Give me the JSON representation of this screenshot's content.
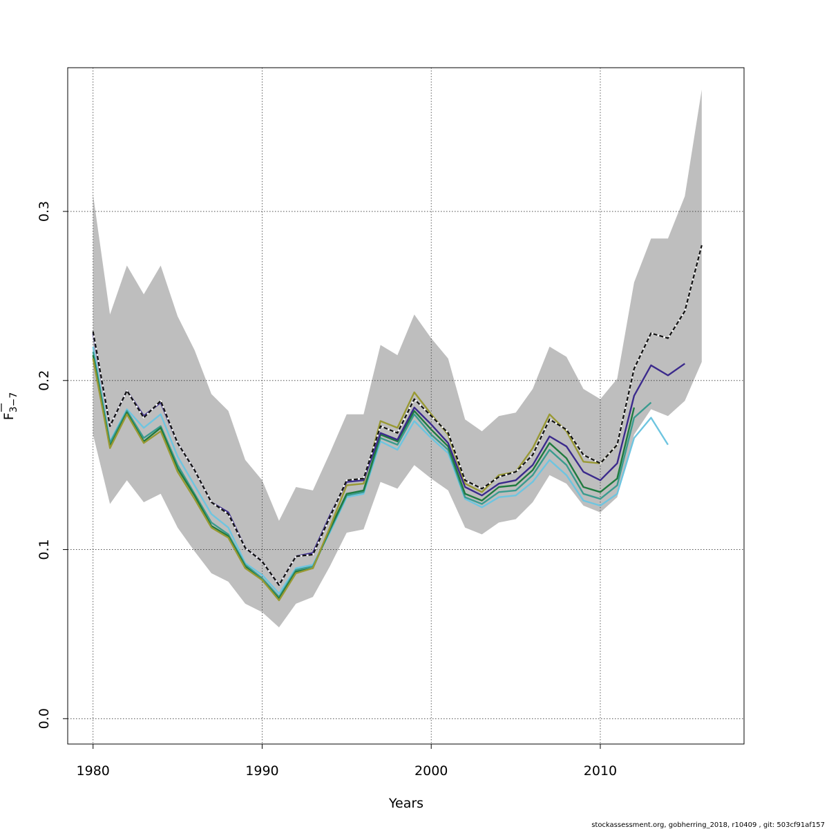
{
  "chart_data": {
    "type": "line",
    "xlabel": "Years",
    "ylabel_main": "F",
    "ylabel_sub": "3−7",
    "xlim": [
      1978.5,
      2018.5
    ],
    "ylim": [
      -0.015,
      0.385
    ],
    "x_ticks": [
      "1980",
      "1990",
      "2000",
      "2010"
    ],
    "y_ticks": [
      "0.0",
      "0.1",
      "0.2",
      "0.3"
    ],
    "grid": true,
    "band": {
      "x": [
        1980,
        1981,
        1982,
        1983,
        1984,
        1985,
        1986,
        1987,
        1988,
        1989,
        1990,
        1991,
        1992,
        1993,
        1994,
        1995,
        1996,
        1997,
        1998,
        1999,
        2000,
        2001,
        2002,
        2003,
        2004,
        2005,
        2006,
        2007,
        2008,
        2009,
        2010,
        2011,
        2012,
        2013,
        2014,
        2015,
        2016
      ],
      "lower": [
        0.168,
        0.127,
        0.141,
        0.128,
        0.133,
        0.113,
        0.099,
        0.086,
        0.081,
        0.068,
        0.063,
        0.054,
        0.068,
        0.072,
        0.09,
        0.11,
        0.112,
        0.14,
        0.136,
        0.15,
        0.142,
        0.135,
        0.113,
        0.109,
        0.116,
        0.118,
        0.128,
        0.144,
        0.139,
        0.126,
        0.122,
        0.131,
        0.168,
        0.183,
        0.179,
        0.188,
        0.211
      ],
      "upper": [
        0.31,
        0.239,
        0.268,
        0.251,
        0.268,
        0.238,
        0.218,
        0.192,
        0.182,
        0.153,
        0.141,
        0.117,
        0.137,
        0.135,
        0.157,
        0.18,
        0.18,
        0.221,
        0.215,
        0.239,
        0.225,
        0.213,
        0.177,
        0.17,
        0.179,
        0.181,
        0.195,
        0.22,
        0.214,
        0.195,
        0.189,
        0.201,
        0.258,
        0.284,
        0.284,
        0.309,
        0.372
      ]
    },
    "series": [
      {
        "color": "#6ec5e0",
        "style": "solid",
        "x": [
          1980,
          1981,
          1982,
          1983,
          1984,
          1985,
          1986,
          1987,
          1988,
          1989,
          1990,
          1991,
          1992,
          1993,
          1994,
          1995,
          1996,
          1997,
          1998,
          1999,
          2000,
          2001,
          2002,
          2003,
          2004,
          2005,
          2006,
          2007,
          2008,
          2009,
          2010,
          2011,
          2012,
          2013,
          2014
        ],
        "y": [
          0.22,
          0.164,
          0.183,
          0.172,
          0.18,
          0.155,
          0.138,
          0.121,
          0.113,
          0.092,
          0.085,
          0.074,
          0.089,
          0.091,
          0.11,
          0.131,
          0.133,
          0.164,
          0.159,
          0.176,
          0.166,
          0.157,
          0.13,
          0.125,
          0.131,
          0.132,
          0.14,
          0.153,
          0.144,
          0.129,
          0.126,
          0.133,
          0.166,
          0.178,
          0.162
        ]
      },
      {
        "color": "#3a9b8f",
        "style": "solid",
        "x": [
          1980,
          1981,
          1982,
          1983,
          1984,
          1985,
          1986,
          1987,
          1988,
          1989,
          1990,
          1991,
          1992,
          1993,
          1994,
          1995,
          1996,
          1997,
          1998,
          1999,
          2000,
          2001,
          2002,
          2003,
          2004,
          2005,
          2006,
          2007,
          2008,
          2009,
          2010,
          2011,
          2012,
          2013
        ],
        "y": [
          0.217,
          0.163,
          0.182,
          0.166,
          0.173,
          0.15,
          0.133,
          0.116,
          0.109,
          0.091,
          0.083,
          0.072,
          0.088,
          0.09,
          0.111,
          0.132,
          0.134,
          0.166,
          0.162,
          0.18,
          0.168,
          0.159,
          0.131,
          0.127,
          0.134,
          0.135,
          0.144,
          0.159,
          0.15,
          0.133,
          0.13,
          0.138,
          0.178,
          0.187
        ]
      },
      {
        "color": "#1f7a3f",
        "style": "solid",
        "x": [
          1980,
          1981,
          1982,
          1983,
          1984,
          1985,
          1986,
          1987,
          1988,
          1989,
          1990,
          1991,
          1992,
          1993,
          1994,
          1995,
          1996,
          1997,
          1998,
          1999,
          2000,
          2001,
          2002,
          2003,
          2004,
          2005,
          2006,
          2007,
          2008,
          2009,
          2010,
          2011,
          2012
        ],
        "y": [
          0.215,
          0.161,
          0.181,
          0.164,
          0.172,
          0.148,
          0.132,
          0.114,
          0.108,
          0.09,
          0.082,
          0.071,
          0.087,
          0.089,
          0.112,
          0.133,
          0.135,
          0.168,
          0.164,
          0.182,
          0.171,
          0.161,
          0.133,
          0.129,
          0.137,
          0.138,
          0.147,
          0.163,
          0.154,
          0.137,
          0.134,
          0.142,
          0.184
        ]
      },
      {
        "color": "#999933",
        "style": "solid",
        "x": [
          1980,
          1981,
          1982,
          1983,
          1984,
          1985,
          1986,
          1987,
          1988,
          1989,
          1990,
          1991,
          1992,
          1993,
          1994,
          1995,
          1996,
          1997,
          1998,
          1999,
          2000,
          2001,
          2002,
          2003,
          2004,
          2005,
          2006,
          2007,
          2008,
          2009,
          2010,
          2011
        ],
        "y": [
          0.213,
          0.16,
          0.18,
          0.163,
          0.17,
          0.146,
          0.13,
          0.113,
          0.107,
          0.089,
          0.082,
          0.07,
          0.086,
          0.089,
          0.113,
          0.138,
          0.139,
          0.176,
          0.172,
          0.193,
          0.18,
          0.168,
          0.139,
          0.134,
          0.144,
          0.146,
          0.16,
          0.18,
          0.17,
          0.152,
          0.151,
          0.162
        ]
      },
      {
        "color": "#3b2a8c",
        "style": "solid",
        "x": [
          1980,
          1981,
          1982,
          1983,
          1984,
          1985,
          1986,
          1987,
          1988,
          1989,
          1990,
          1991,
          1992,
          1993,
          1994,
          1995,
          1996,
          1997,
          1998,
          1999,
          2000,
          2001,
          2002,
          2003,
          2004,
          2005,
          2006,
          2007,
          2008,
          2009,
          2010,
          2011,
          2012,
          2013,
          2014,
          2015
        ],
        "y": [
          0.228,
          0.173,
          0.194,
          0.179,
          0.187,
          0.163,
          0.147,
          0.128,
          0.122,
          0.101,
          0.093,
          0.079,
          0.096,
          0.098,
          0.12,
          0.14,
          0.141,
          0.169,
          0.165,
          0.184,
          0.174,
          0.163,
          0.137,
          0.132,
          0.139,
          0.141,
          0.15,
          0.167,
          0.161,
          0.146,
          0.141,
          0.151,
          0.191,
          0.209,
          0.203,
          0.21
        ]
      },
      {
        "color": "#111111",
        "style": "dashed",
        "x": [
          1980,
          1981,
          1982,
          1983,
          1984,
          1985,
          1986,
          1987,
          1988,
          1989,
          1990,
          1991,
          1992,
          1993,
          1994,
          1995,
          1996,
          1997,
          1998,
          1999,
          2000,
          2001,
          2002,
          2003,
          2004,
          2005,
          2006,
          2007,
          2008,
          2009,
          2010,
          2011,
          2012,
          2013,
          2014,
          2015,
          2016
        ],
        "y": [
          0.229,
          0.173,
          0.194,
          0.178,
          0.188,
          0.163,
          0.147,
          0.128,
          0.121,
          0.101,
          0.093,
          0.079,
          0.096,
          0.097,
          0.119,
          0.141,
          0.142,
          0.173,
          0.169,
          0.189,
          0.179,
          0.169,
          0.141,
          0.136,
          0.143,
          0.146,
          0.156,
          0.177,
          0.171,
          0.156,
          0.151,
          0.162,
          0.207,
          0.228,
          0.225,
          0.241,
          0.28
        ]
      }
    ]
  },
  "footer": "stockassessment.org, gobherring_2018, r10409 , git: 503cf91af157"
}
